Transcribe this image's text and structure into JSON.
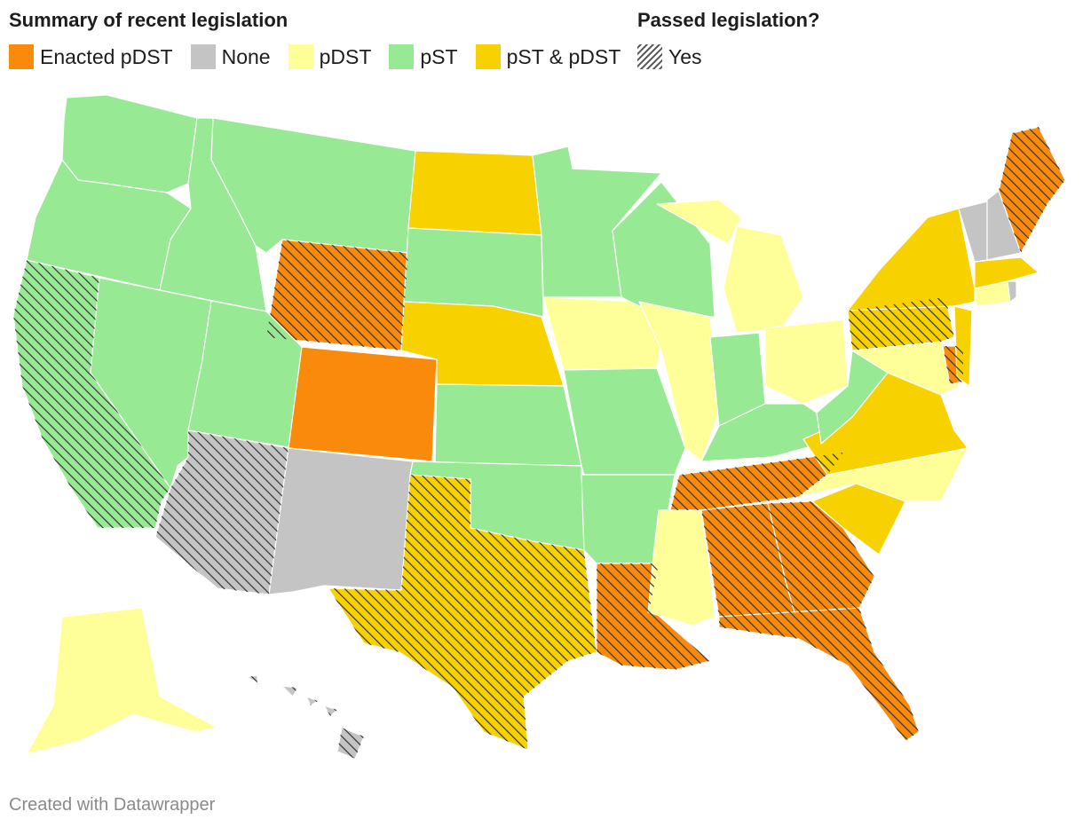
{
  "legend": {
    "title_summary": "Summary of recent legislation",
    "title_passed": "Passed legislation?",
    "categories": [
      {
        "key": "enacted",
        "label": "Enacted pDST",
        "color": "#f98a0b"
      },
      {
        "key": "none",
        "label": "None",
        "color": "#c4c4c4"
      },
      {
        "key": "pdst",
        "label": "pDST",
        "color": "#ffff99"
      },
      {
        "key": "pst",
        "label": "pST",
        "color": "#98e994"
      },
      {
        "key": "both",
        "label": "pST & pDST",
        "color": "#f7d100"
      }
    ],
    "passed_label": "Yes"
  },
  "states": [
    {
      "id": "WA",
      "category": "pst",
      "passed": false
    },
    {
      "id": "OR",
      "category": "pst",
      "passed": false
    },
    {
      "id": "CA",
      "category": "pst",
      "passed": true
    },
    {
      "id": "ID",
      "category": "pst",
      "passed": false
    },
    {
      "id": "NV",
      "category": "pst",
      "passed": false
    },
    {
      "id": "MT",
      "category": "pst",
      "passed": false
    },
    {
      "id": "WY",
      "category": "enacted",
      "passed": true
    },
    {
      "id": "UT",
      "category": "pst",
      "passed": false
    },
    {
      "id": "CO",
      "category": "enacted",
      "passed": false
    },
    {
      "id": "AZ",
      "category": "none",
      "passed": true
    },
    {
      "id": "NM",
      "category": "none",
      "passed": false
    },
    {
      "id": "ND",
      "category": "both",
      "passed": false
    },
    {
      "id": "SD",
      "category": "pst",
      "passed": false
    },
    {
      "id": "NE",
      "category": "both",
      "passed": false
    },
    {
      "id": "KS",
      "category": "pst",
      "passed": false
    },
    {
      "id": "OK",
      "category": "pst",
      "passed": false
    },
    {
      "id": "TX",
      "category": "both",
      "passed": true
    },
    {
      "id": "MN",
      "category": "pst",
      "passed": false
    },
    {
      "id": "IA",
      "category": "pdst",
      "passed": false
    },
    {
      "id": "MO",
      "category": "pst",
      "passed": false
    },
    {
      "id": "AR",
      "category": "pst",
      "passed": false
    },
    {
      "id": "LA",
      "category": "enacted",
      "passed": true
    },
    {
      "id": "WI",
      "category": "pst",
      "passed": false
    },
    {
      "id": "IL",
      "category": "pdst",
      "passed": false
    },
    {
      "id": "MI",
      "category": "pdst",
      "passed": false
    },
    {
      "id": "IN",
      "category": "pst",
      "passed": false
    },
    {
      "id": "OH",
      "category": "pdst",
      "passed": false
    },
    {
      "id": "KY",
      "category": "pst",
      "passed": false
    },
    {
      "id": "TN",
      "category": "enacted",
      "passed": true
    },
    {
      "id": "MS",
      "category": "pdst",
      "passed": false
    },
    {
      "id": "AL",
      "category": "enacted",
      "passed": true
    },
    {
      "id": "GA",
      "category": "enacted",
      "passed": true
    },
    {
      "id": "FL",
      "category": "enacted",
      "passed": true
    },
    {
      "id": "SC",
      "category": "both",
      "passed": false
    },
    {
      "id": "NC",
      "category": "pdst",
      "passed": false
    },
    {
      "id": "VA",
      "category": "both",
      "passed": false
    },
    {
      "id": "WV",
      "category": "pst",
      "passed": false
    },
    {
      "id": "MD",
      "category": "pdst",
      "passed": false
    },
    {
      "id": "DE",
      "category": "enacted",
      "passed": true
    },
    {
      "id": "PA",
      "category": "both",
      "passed": true
    },
    {
      "id": "NJ",
      "category": "both",
      "passed": false
    },
    {
      "id": "NY",
      "category": "both",
      "passed": false
    },
    {
      "id": "CT",
      "category": "pdst",
      "passed": false
    },
    {
      "id": "RI",
      "category": "none",
      "passed": false
    },
    {
      "id": "MA",
      "category": "both",
      "passed": false
    },
    {
      "id": "VT",
      "category": "none",
      "passed": false
    },
    {
      "id": "NH",
      "category": "none",
      "passed": false
    },
    {
      "id": "ME",
      "category": "enacted",
      "passed": true
    },
    {
      "id": "AK",
      "category": "pdst",
      "passed": false
    },
    {
      "id": "HI",
      "category": "none",
      "passed": true
    }
  ],
  "footer": "Created with Datawrapper"
}
